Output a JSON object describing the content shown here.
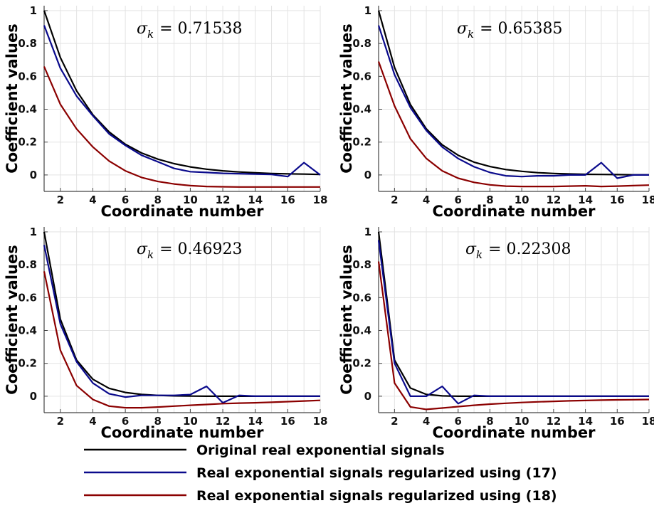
{
  "chart_data": [
    {
      "type": "line",
      "annotation": "σ_k = 0.71538",
      "annotation_symbol": "σ",
      "annotation_sub": "k",
      "annotation_value": "= 0.71538",
      "xlabel": "Coordinate number",
      "ylabel": "Coefficient values",
      "xlim": [
        1,
        18
      ],
      "ylim": [
        -0.1,
        1.03
      ],
      "xticks": [
        2,
        4,
        6,
        8,
        10,
        12,
        14,
        16,
        18
      ],
      "yticks": [
        0,
        0.2,
        0.4,
        0.6,
        0.8,
        1
      ],
      "ytick_labels": [
        "0",
        "0.2",
        "0.4",
        "0.6",
        "0.8",
        "1"
      ],
      "grid": true,
      "x": [
        1,
        2,
        3,
        4,
        5,
        6,
        7,
        8,
        9,
        10,
        11,
        12,
        13,
        14,
        15,
        16,
        17,
        18
      ],
      "series": [
        {
          "name": "Original real exponential signals",
          "color": "#000000",
          "values": [
            1.0,
            0.715,
            0.512,
            0.366,
            0.262,
            0.187,
            0.134,
            0.096,
            0.069,
            0.049,
            0.035,
            0.025,
            0.018,
            0.013,
            0.009,
            0.007,
            0.005,
            0.003
          ]
        },
        {
          "name": "Real exponential signals regularized using (17)",
          "color": "#0a0a8c",
          "values": [
            0.91,
            0.65,
            0.48,
            0.36,
            0.25,
            0.18,
            0.12,
            0.08,
            0.04,
            0.02,
            0.015,
            0.01,
            0.008,
            0.005,
            0.003,
            -0.01,
            0.075,
            0.0
          ]
        },
        {
          "name": "Real exponential signals regularized using (18)",
          "color": "#8b0000",
          "values": [
            0.66,
            0.43,
            0.28,
            0.17,
            0.085,
            0.025,
            -0.015,
            -0.04,
            -0.055,
            -0.065,
            -0.07,
            -0.072,
            -0.073,
            -0.073,
            -0.073,
            -0.073,
            -0.073,
            -0.073
          ]
        }
      ]
    },
    {
      "type": "line",
      "annotation": "σ_k = 0.65385",
      "annotation_symbol": "σ",
      "annotation_sub": "k",
      "annotation_value": "= 0.65385",
      "xlabel": "Coordinate number",
      "ylabel": "Coefficient values",
      "xlim": [
        1,
        18
      ],
      "ylim": [
        -0.1,
        1.03
      ],
      "xticks": [
        2,
        4,
        6,
        8,
        10,
        12,
        14,
        16,
        18
      ],
      "yticks": [
        0,
        0.2,
        0.4,
        0.6,
        0.8,
        1
      ],
      "ytick_labels": [
        "0",
        "0.2",
        "0.4",
        "0.6",
        "0.8",
        "1"
      ],
      "grid": true,
      "x": [
        1,
        2,
        3,
        4,
        5,
        6,
        7,
        8,
        9,
        10,
        11,
        12,
        13,
        14,
        15,
        16,
        17,
        18
      ],
      "series": [
        {
          "name": "Original real exponential signals",
          "color": "#000000",
          "values": [
            1.0,
            0.654,
            0.428,
            0.28,
            0.183,
            0.12,
            0.078,
            0.051,
            0.033,
            0.022,
            0.014,
            0.009,
            0.006,
            0.004,
            0.003,
            0.002,
            0.001,
            0.001
          ]
        },
        {
          "name": "Real exponential signals regularized using (17)",
          "color": "#0a0a8c",
          "values": [
            0.91,
            0.61,
            0.41,
            0.27,
            0.17,
            0.1,
            0.05,
            0.015,
            -0.005,
            -0.01,
            -0.005,
            -0.005,
            0.0,
            0.0,
            0.075,
            -0.02,
            0.0,
            0.0
          ]
        },
        {
          "name": "Real exponential signals regularized using (18)",
          "color": "#8b0000",
          "values": [
            0.69,
            0.42,
            0.22,
            0.1,
            0.025,
            -0.02,
            -0.045,
            -0.06,
            -0.068,
            -0.07,
            -0.07,
            -0.07,
            -0.068,
            -0.066,
            -0.07,
            -0.068,
            -0.065,
            -0.062
          ]
        }
      ]
    },
    {
      "type": "line",
      "annotation": "σ_k = 0.46923",
      "annotation_symbol": "σ",
      "annotation_sub": "k",
      "annotation_value": "= 0.46923",
      "xlabel": "Coordinate number",
      "ylabel": "Coefficient values",
      "xlim": [
        1,
        18
      ],
      "ylim": [
        -0.1,
        1.03
      ],
      "xticks": [
        2,
        4,
        6,
        8,
        10,
        12,
        14,
        16,
        18
      ],
      "yticks": [
        0,
        0.2,
        0.4,
        0.6,
        0.8,
        1
      ],
      "ytick_labels": [
        "0",
        "0.2",
        "0.4",
        "0.6",
        "0.8",
        "1"
      ],
      "grid": true,
      "x": [
        1,
        2,
        3,
        4,
        5,
        6,
        7,
        8,
        9,
        10,
        11,
        12,
        13,
        14,
        15,
        16,
        17,
        18
      ],
      "series": [
        {
          "name": "Original real exponential signals",
          "color": "#000000",
          "values": [
            1.0,
            0.469,
            0.22,
            0.103,
            0.048,
            0.023,
            0.011,
            0.005,
            0.002,
            0.001,
            0.0,
            0.0,
            0.0,
            0.0,
            0.0,
            0.0,
            0.0,
            0.0
          ]
        },
        {
          "name": "Real exponential signals regularized using (17)",
          "color": "#0a0a8c",
          "values": [
            0.92,
            0.44,
            0.21,
            0.08,
            0.015,
            -0.005,
            0.005,
            0.005,
            0.005,
            0.01,
            0.06,
            -0.04,
            0.005,
            0.0,
            0.0,
            0.0,
            0.0,
            0.0
          ]
        },
        {
          "name": "Real exponential signals regularized using (18)",
          "color": "#8b0000",
          "values": [
            0.76,
            0.28,
            0.065,
            -0.02,
            -0.06,
            -0.07,
            -0.07,
            -0.066,
            -0.06,
            -0.055,
            -0.05,
            -0.045,
            -0.042,
            -0.04,
            -0.037,
            -0.033,
            -0.029,
            -0.025
          ]
        }
      ]
    },
    {
      "type": "line",
      "annotation": "σ_k = 0.22308",
      "annotation_symbol": "σ",
      "annotation_sub": "k",
      "annotation_value": "= 0.22308",
      "xlabel": "Coordinate number",
      "ylabel": "Coefficient values",
      "xlim": [
        1,
        18
      ],
      "ylim": [
        -0.1,
        1.03
      ],
      "xticks": [
        2,
        4,
        6,
        8,
        10,
        12,
        14,
        16,
        18
      ],
      "yticks": [
        0,
        0.2,
        0.4,
        0.6,
        0.8,
        1
      ],
      "ytick_labels": [
        "0",
        "0.2",
        "0.4",
        "0.6",
        "0.8",
        "1"
      ],
      "grid": true,
      "x": [
        1,
        2,
        3,
        4,
        5,
        6,
        7,
        8,
        9,
        10,
        11,
        12,
        13,
        14,
        15,
        16,
        17,
        18
      ],
      "series": [
        {
          "name": "Original real exponential signals",
          "color": "#000000",
          "values": [
            1.0,
            0.22,
            0.05,
            0.011,
            0.002,
            0.0,
            0.0,
            0.0,
            0.0,
            0.0,
            0.0,
            0.0,
            0.0,
            0.0,
            0.0,
            0.0,
            0.0,
            0.0
          ]
        },
        {
          "name": "Real exponential signals regularized using (17)",
          "color": "#0a0a8c",
          "values": [
            0.95,
            0.2,
            0.0,
            0.0,
            0.06,
            -0.045,
            0.005,
            0.0,
            0.0,
            0.0,
            0.0,
            0.0,
            0.0,
            0.0,
            0.0,
            0.0,
            0.0,
            0.0
          ]
        },
        {
          "name": "Real exponential signals regularized using (18)",
          "color": "#8b0000",
          "values": [
            0.82,
            0.08,
            -0.065,
            -0.08,
            -0.072,
            -0.063,
            -0.055,
            -0.048,
            -0.043,
            -0.038,
            -0.034,
            -0.031,
            -0.028,
            -0.026,
            -0.024,
            -0.022,
            -0.021,
            -0.02
          ]
        }
      ]
    }
  ],
  "legend": {
    "placement": "bottom",
    "items": [
      {
        "label": "Original real exponential signals",
        "color": "#000000"
      },
      {
        "label": "Real exponential signals regularized using (17)",
        "color": "#0a0a8c"
      },
      {
        "label": "Real exponential signals regularized using (18)",
        "color": "#8b0000"
      }
    ]
  }
}
